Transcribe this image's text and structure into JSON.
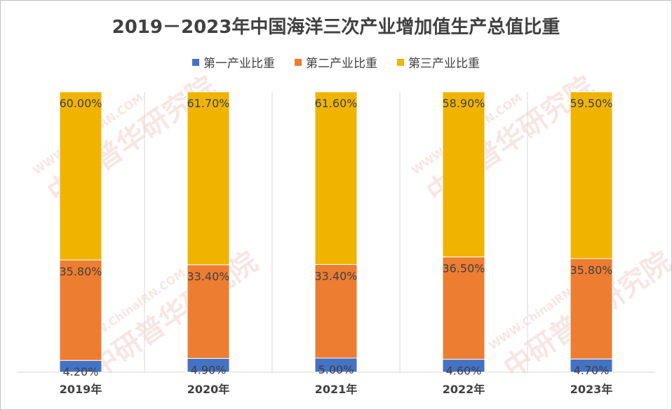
{
  "chart_data": {
    "type": "bar",
    "stacked": true,
    "title": "2019－2023年中国海洋三次产业增加值生产总值比重",
    "categories": [
      "2019年",
      "2020年",
      "2021年",
      "2022年",
      "2023年"
    ],
    "series": [
      {
        "name": "第一产业比重",
        "color": "#4472c4",
        "values": [
          4.2,
          4.9,
          5.0,
          4.6,
          4.7
        ],
        "labels": [
          "4.20%",
          "4.90%",
          "5.00%",
          "4.60%",
          "4.70%"
        ]
      },
      {
        "name": "第二产业比重",
        "color": "#ed7d31",
        "values": [
          35.8,
          33.4,
          33.4,
          36.5,
          35.8
        ],
        "labels": [
          "35.80%",
          "33.40%",
          "33.40%",
          "36.50%",
          "35.80%"
        ]
      },
      {
        "name": "第三产业比重",
        "color": "#f0b400",
        "values": [
          60.0,
          61.7,
          61.6,
          58.9,
          59.5
        ],
        "labels": [
          "60.00%",
          "61.70%",
          "61.60%",
          "58.90%",
          "59.50%"
        ]
      }
    ],
    "ylim": [
      0,
      100
    ],
    "legend_position": "top",
    "grid": "vertical separators"
  },
  "watermark": {
    "name": "中研普华研究院",
    "url": "WWW.ChinaIRN.COM",
    "logo": "CIRN"
  }
}
